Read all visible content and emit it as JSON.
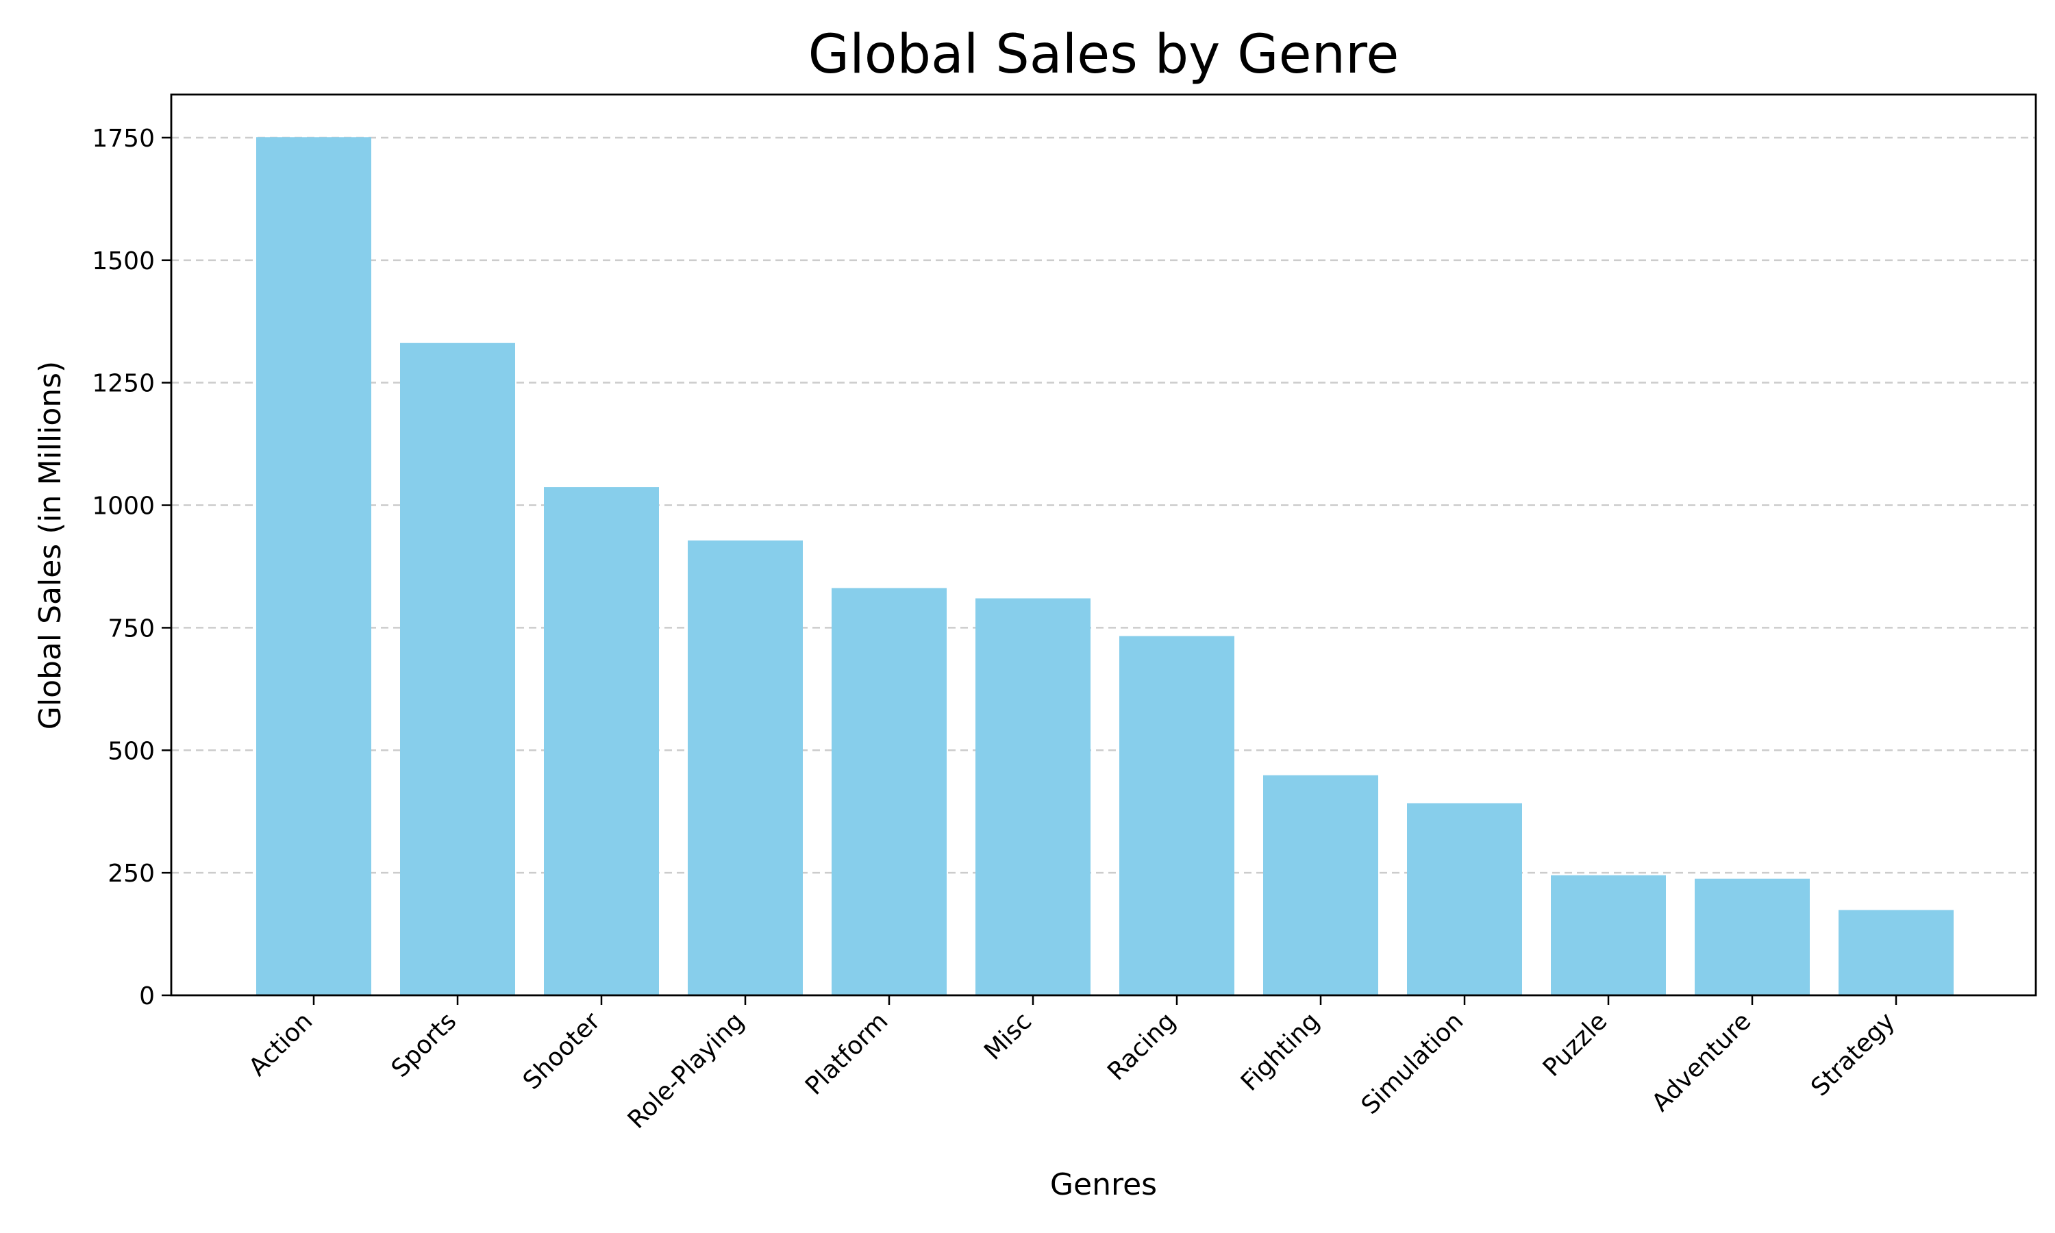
{
  "chart_data": {
    "type": "bar",
    "title": "Global Sales by Genre",
    "xlabel": "Genres",
    "ylabel": "Global Sales (in Millions)",
    "categories": [
      "Action",
      "Sports",
      "Shooter",
      "Role-Playing",
      "Platform",
      "Misc",
      "Racing",
      "Fighting",
      "Simulation",
      "Puzzle",
      "Adventure",
      "Strategy"
    ],
    "values": [
      1751,
      1331,
      1037,
      928,
      831,
      810,
      733,
      449,
      392,
      245,
      238,
      174
    ],
    "ylim": [
      0,
      1838
    ],
    "yticks": [
      0,
      250,
      500,
      750,
      1000,
      1250,
      1500,
      1750
    ],
    "grid": "y-dashed",
    "bar_color": "#87ceeb"
  }
}
